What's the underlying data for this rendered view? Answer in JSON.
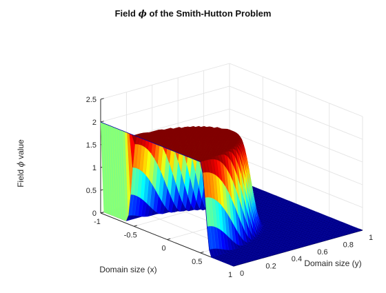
{
  "chart_data": {
    "type": "surface",
    "title_prefix": "Field",
    "title_symbol": "ϕ",
    "title_suffix": "of the Smith-Hutton Problem",
    "xlabel": "Domain size (x)",
    "ylabel": "Domain size (y)",
    "zlabel_prefix": "Field",
    "zlabel_symbol": "ϕ",
    "zlabel_suffix": "value",
    "xlim": [
      -1,
      1
    ],
    "ylim": [
      0,
      1
    ],
    "zlim": [
      0,
      2.5
    ],
    "x_ticks": [
      -1,
      -0.5,
      0,
      0.5,
      1
    ],
    "x_tick_labels": [
      "-1",
      "-0.5",
      "0",
      "0.5",
      "1"
    ],
    "y_ticks": [
      0,
      0.2,
      0.4,
      0.6,
      0.8,
      1
    ],
    "y_tick_labels": [
      "0",
      "0.2",
      "0.4",
      "0.6",
      "0.8",
      "1"
    ],
    "z_ticks": [
      0,
      0.5,
      1,
      1.5,
      2,
      2.5
    ],
    "z_tick_labels": [
      "0",
      "0.5",
      "1",
      "1.5",
      "2",
      "2.5"
    ],
    "grid": true,
    "colormap": "jet",
    "surface": {
      "description": "phi = 2 on the inlet (x in [-1,0], y = 0) carried around by rotating flow; outlet profile on x in [0,1] at y = 0 drops from 2 to 0 near x = 0.5; phi ≈ 0 elsewhere",
      "inlet_value": 2,
      "outlet_value_near_x0": 2,
      "outlet_value_near_x1": 0,
      "transition_x": 0.5,
      "background_value": 0
    },
    "colors": {
      "low": "#00008f",
      "high": "#800000"
    }
  }
}
